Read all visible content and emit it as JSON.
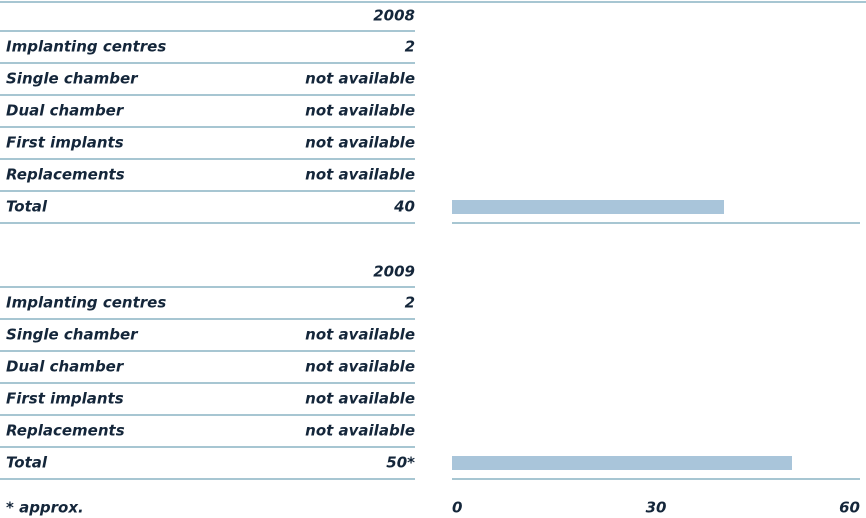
{
  "tables": [
    {
      "year": "2008",
      "rows": [
        [
          "Implanting centres",
          "2"
        ],
        [
          "Single chamber",
          "not available"
        ],
        [
          "Dual chamber",
          "not available"
        ],
        [
          "First implants",
          "not available"
        ],
        [
          "Replacements",
          "not available"
        ]
      ],
      "total_label": "Total"
    },
    {
      "year": "2009",
      "rows": [
        [
          "Implanting centres",
          "2"
        ],
        [
          "Single chamber",
          "not available"
        ],
        [
          "Dual chamber",
          "not available"
        ],
        [
          "First implants",
          "not available"
        ],
        [
          "Replacements",
          "not available"
        ]
      ],
      "total_label": "Total"
    }
  ],
  "footnote": "* approx.",
  "chart_data": {
    "type": "bar",
    "orientation": "horizontal",
    "values": [
      40,
      50
    ],
    "value_labels": [
      "40",
      "50*"
    ],
    "color": "#a9c5da",
    "xlim": [
      0,
      60
    ],
    "xticks": [
      0,
      30,
      60
    ]
  }
}
